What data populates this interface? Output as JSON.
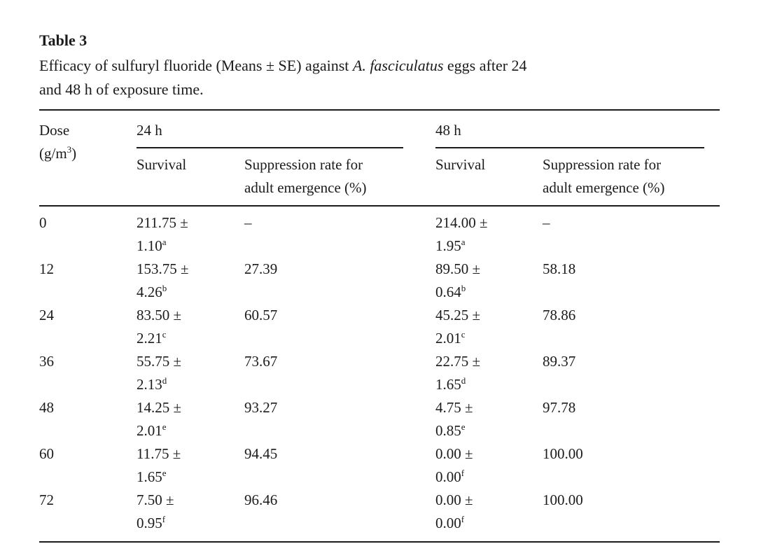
{
  "page": {
    "background": "#ffffff",
    "text_color": "#1b1b1b",
    "rule_color": "#1b1b1b"
  },
  "table3": {
    "label": "Table 3",
    "caption": {
      "line1_prefix": "Efficacy of sulfuryl fluoride (Means ± SE) against ",
      "species": "A. fasciculatus",
      "line1_suffix": " eggs after 24",
      "line2": "and 48 h of exposure time."
    },
    "header": {
      "dose_line1": "Dose",
      "dose_unit_pre": "(g/m",
      "dose_unit_sup": "3",
      "dose_unit_post": ")",
      "group_24h": "24 h",
      "group_48h": "48 h",
      "survival": "Survival",
      "suppression_line1": "Suppression rate for",
      "suppression_line2": "adult emergence (%)"
    },
    "plus_minus": "±",
    "no_value": "–",
    "rows": [
      {
        "dose": "0",
        "h24": {
          "mean": "211.75",
          "se": "1.10",
          "sig": "a",
          "suppression": "–"
        },
        "h48": {
          "mean": "214.00",
          "se": "1.95",
          "sig": "a",
          "suppression": "–"
        }
      },
      {
        "dose": "12",
        "h24": {
          "mean": "153.75",
          "se": "4.26",
          "sig": "b",
          "suppression": "27.39"
        },
        "h48": {
          "mean": "89.50",
          "se": "0.64",
          "sig": "b",
          "suppression": "58.18"
        }
      },
      {
        "dose": "24",
        "h24": {
          "mean": "83.50",
          "se": "2.21",
          "sig": "c",
          "suppression": "60.57"
        },
        "h48": {
          "mean": "45.25",
          "se": "2.01",
          "sig": "c",
          "suppression": "78.86"
        }
      },
      {
        "dose": "36",
        "h24": {
          "mean": "55.75",
          "se": "2.13",
          "sig": "d",
          "suppression": "73.67"
        },
        "h48": {
          "mean": "22.75",
          "se": "1.65",
          "sig": "d",
          "suppression": "89.37"
        }
      },
      {
        "dose": "48",
        "h24": {
          "mean": "14.25",
          "se": "2.01",
          "sig": "e",
          "suppression": "93.27"
        },
        "h48": {
          "mean": "4.75",
          "se": "0.85",
          "sig": "e",
          "suppression": "97.78"
        }
      },
      {
        "dose": "60",
        "h24": {
          "mean": "11.75",
          "se": "1.65",
          "sig": "e",
          "suppression": "94.45"
        },
        "h48": {
          "mean": "0.00",
          "se": "0.00",
          "sig": "f",
          "suppression": "100.00"
        }
      },
      {
        "dose": "72",
        "h24": {
          "mean": "7.50",
          "se": "0.95",
          "sig": "f",
          "suppression": "96.46"
        },
        "h48": {
          "mean": "0.00",
          "se": "0.00",
          "sig": "f",
          "suppression": "100.00"
        }
      }
    ]
  }
}
